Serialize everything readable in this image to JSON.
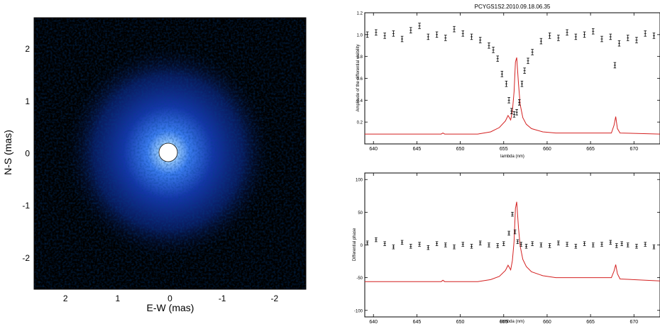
{
  "chart_data": [
    {
      "type": "heatmap",
      "xlabel": "E-W (mas)",
      "ylabel": "N-S (mas)",
      "xlim": [
        2.6,
        -2.6
      ],
      "ylim": [
        -2.6,
        2.6
      ],
      "x_ticks": [
        2,
        1,
        0,
        -1,
        -2
      ],
      "y_ticks": [
        2,
        1,
        0,
        -1,
        -2
      ],
      "x_tick_labels": [
        "2",
        "1",
        "0",
        "-1",
        "-2"
      ],
      "y_tick_labels": [
        "2",
        "1",
        "0",
        "-1",
        "-2"
      ],
      "background": "#000000",
      "colormap": [
        "#000000",
        "#0a1a6e",
        "#1e55d8",
        "#5aa8ff",
        "#ffffff"
      ],
      "central_disk": {
        "x": 0,
        "y": 0,
        "radius": 0.15,
        "color": "#ffffff"
      }
    },
    {
      "type": "scatter",
      "title": "PCYGS1S2.2010.09.18.06.35",
      "xlabel": "lambda (nm)",
      "ylabel": "Amplitude of the differential visibility",
      "xlim": [
        639,
        673
      ],
      "ylim": [
        0.0,
        1.2
      ],
      "x_ticks": [
        640,
        645,
        650,
        655,
        660,
        665,
        670
      ],
      "y_ticks": [
        0.2,
        0.4,
        0.6,
        0.8,
        1.0,
        1.2
      ],
      "x_tick_labels": [
        "640",
        "645",
        "650",
        "655",
        "660",
        "665",
        "670"
      ],
      "y_tick_labels": [
        "0.2",
        "0.4",
        "0.6",
        "0.8",
        "1.0",
        "1.2"
      ],
      "series": [
        {
          "type": "errorbar",
          "color": "#000000",
          "x": [
            639.3,
            640.3,
            641.3,
            642.3,
            643.3,
            644.3,
            645.3,
            646.3,
            647.3,
            648.3,
            649.3,
            650.3,
            651.3,
            652.3,
            653.3,
            653.8,
            654.3,
            654.8,
            655.3,
            655.6,
            655.9,
            656.2,
            656.5,
            656.8,
            657.1,
            657.4,
            657.8,
            658.3,
            659.3,
            660.3,
            661.3,
            662.3,
            663.3,
            664.3,
            665.3,
            666.3,
            667.3,
            667.8,
            668.3,
            669.3,
            670.3,
            671.3,
            672.3
          ],
          "y": [
            1.0,
            1.02,
            0.99,
            1.01,
            0.96,
            1.04,
            1.08,
            0.98,
            1.0,
            0.97,
            1.05,
            1.01,
            0.98,
            0.95,
            0.9,
            0.86,
            0.78,
            0.64,
            0.55,
            0.4,
            0.3,
            0.27,
            0.29,
            0.38,
            0.55,
            0.67,
            0.76,
            0.84,
            0.94,
            0.99,
            0.97,
            1.02,
            0.98,
            1.0,
            1.03,
            0.96,
            0.98,
            0.72,
            0.92,
            0.97,
            0.95,
            1.01,
            0.99
          ],
          "yerr": 0.025
        },
        {
          "type": "line",
          "color": "#d42020",
          "description_level": "spectrum",
          "x": [
            639,
            645,
            647.8,
            648,
            648.2,
            652,
            653.5,
            654.5,
            655.2,
            655.5,
            655.8,
            656.0,
            656.2,
            656.35,
            656.5,
            656.7,
            656.9,
            657.2,
            657.6,
            658.2,
            659.5,
            661,
            667.4,
            667.7,
            667.9,
            668.1,
            668.4,
            673
          ],
          "y": [
            0.09,
            0.09,
            0.09,
            0.1,
            0.09,
            0.09,
            0.11,
            0.15,
            0.21,
            0.26,
            0.22,
            0.3,
            0.48,
            0.75,
            0.79,
            0.55,
            0.36,
            0.24,
            0.18,
            0.14,
            0.11,
            0.1,
            0.1,
            0.17,
            0.25,
            0.14,
            0.1,
            0.09
          ]
        }
      ]
    },
    {
      "type": "scatter",
      "xlabel": "lambda (nm)",
      "ylabel": "Differential phase",
      "xlim": [
        639,
        673
      ],
      "ylim": [
        -110,
        110
      ],
      "x_ticks": [
        640,
        645,
        650,
        655,
        660,
        665,
        670
      ],
      "y_ticks": [
        100,
        50,
        0,
        -50,
        -100
      ],
      "x_tick_labels": [
        "640",
        "645",
        "650",
        "655",
        "660",
        "665",
        "670"
      ],
      "y_tick_labels": [
        "100",
        "50",
        "0",
        "-50",
        "-100"
      ],
      "series": [
        {
          "type": "errorbar",
          "color": "#000000",
          "x": [
            639.3,
            640.3,
            641.3,
            642.3,
            643.3,
            644.3,
            645.3,
            646.3,
            647.3,
            648.3,
            649.3,
            650.3,
            651.3,
            652.3,
            653.3,
            654.3,
            655.0,
            655.6,
            656.0,
            656.3,
            656.6,
            657.0,
            657.6,
            658.3,
            659.3,
            660.3,
            661.3,
            662.3,
            663.3,
            664.3,
            665.3,
            666.3,
            667.3,
            668.0,
            668.6,
            669.3,
            670.3,
            671.3,
            672.3
          ],
          "y": [
            3,
            8,
            2,
            -3,
            4,
            -2,
            1,
            -4,
            2,
            0,
            -3,
            1,
            -2,
            3,
            0,
            -1,
            2,
            18,
            47,
            20,
            5,
            1,
            -2,
            2,
            0,
            -1,
            3,
            1,
            -2,
            2,
            0,
            1,
            4,
            -1,
            2,
            0,
            -2,
            1,
            -3
          ],
          "yerr": 3
        },
        {
          "type": "line",
          "color": "#d42020",
          "description_level": "spectrum",
          "x": [
            639,
            645,
            647.8,
            648,
            648.2,
            652,
            653.5,
            654.5,
            655.2,
            655.5,
            655.8,
            656.0,
            656.2,
            656.35,
            656.5,
            656.7,
            656.9,
            657.2,
            657.6,
            658.2,
            659.5,
            661,
            667.4,
            667.7,
            667.9,
            668.1,
            668.4,
            673
          ],
          "y": [
            -56,
            -56,
            -56,
            -54,
            -56,
            -56,
            -53,
            -48,
            -39,
            -31,
            -38,
            -24,
            6,
            56,
            66,
            26,
            -2,
            -22,
            -33,
            -41,
            -47,
            -50,
            -50,
            -40,
            -30,
            -44,
            -52,
            -55
          ]
        }
      ]
    }
  ]
}
